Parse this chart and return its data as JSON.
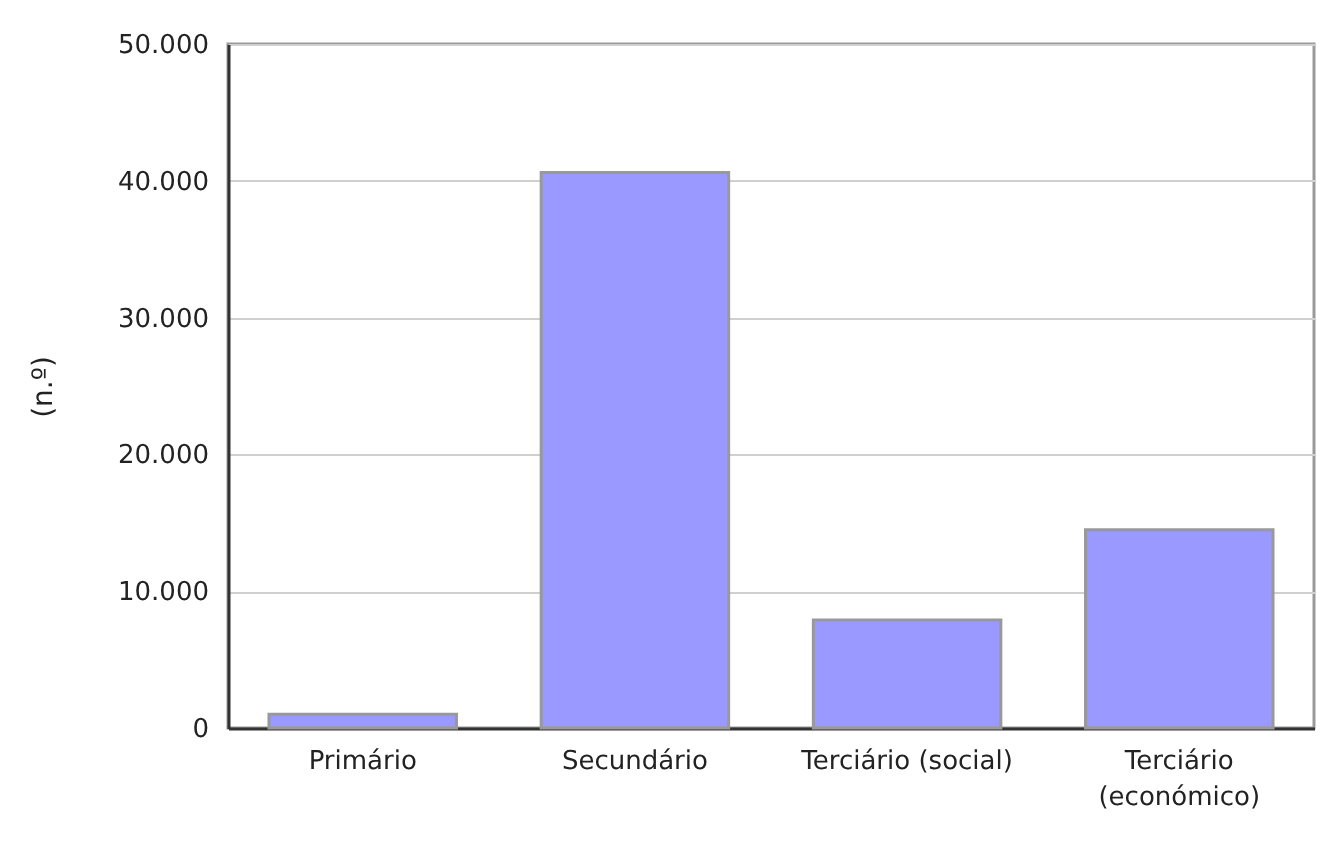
{
  "chart_data": {
    "type": "bar",
    "ylabel": "(n.º)",
    "categories": [
      "Primário",
      "Secundário",
      "Terciário (social)",
      "Terciário (económico)"
    ],
    "values": [
      1000,
      40600,
      7900,
      14500
    ],
    "color": "#9999ff",
    "ylim": [
      0,
      50000
    ],
    "yticks": [
      {
        "value": 0,
        "label": "0"
      },
      {
        "value": 10000,
        "label": "10.000"
      },
      {
        "value": 20000,
        "label": "20.000"
      },
      {
        "value": 30000,
        "label": "30.000"
      },
      {
        "value": 40000,
        "label": "40.000"
      },
      {
        "value": 50000,
        "label": "50.000"
      }
    ],
    "grid": "y"
  }
}
